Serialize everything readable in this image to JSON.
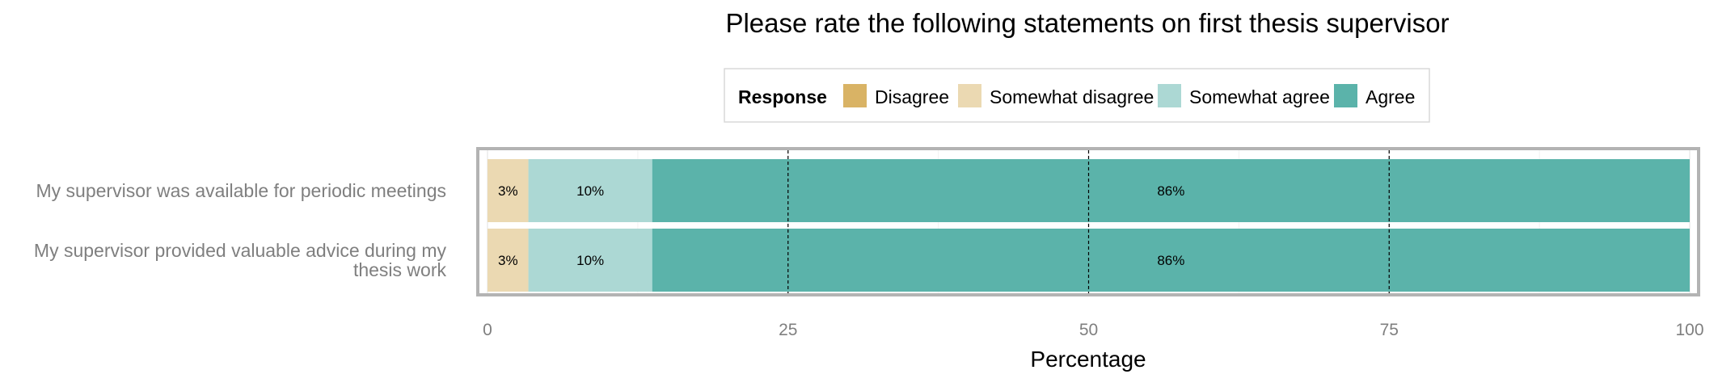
{
  "chart_data": {
    "type": "bar",
    "orientation": "horizontal",
    "stacked": true,
    "title": "Please rate the following statements on first thesis supervisor",
    "xlabel": "Percentage",
    "ylabel": "",
    "xlim": [
      0,
      100
    ],
    "x_ticks": [
      0,
      25,
      50,
      75,
      100
    ],
    "grid": true,
    "legend": {
      "title": "Response",
      "placement": "top-center",
      "entries": [
        "Disagree",
        "Somewhat disagree",
        "Somewhat agree",
        "Agree"
      ]
    },
    "categories": [
      "My supervisor was available for periodic meetings",
      "My supervisor provided valuable advice during my thesis work"
    ],
    "category_lines": [
      [
        "My supervisor was available for periodic meetings"
      ],
      [
        "My supervisor provided valuable advice during my",
        "thesis work"
      ]
    ],
    "series": [
      {
        "name": "Disagree",
        "color": "#d9b365",
        "values": [
          0,
          0
        ],
        "labels": [
          "",
          ""
        ]
      },
      {
        "name": "Somewhat disagree",
        "color": "#ebd9b2",
        "values": [
          3.4,
          3.4
        ],
        "labels": [
          "3%",
          "3%"
        ]
      },
      {
        "name": "Somewhat agree",
        "color": "#acd8d4",
        "values": [
          10.3,
          10.3
        ],
        "labels": [
          "10%",
          "10%"
        ]
      },
      {
        "name": "Agree",
        "color": "#5bb3aa",
        "values": [
          86.3,
          86.3
        ],
        "labels": [
          "86%",
          "86%"
        ]
      }
    ]
  }
}
